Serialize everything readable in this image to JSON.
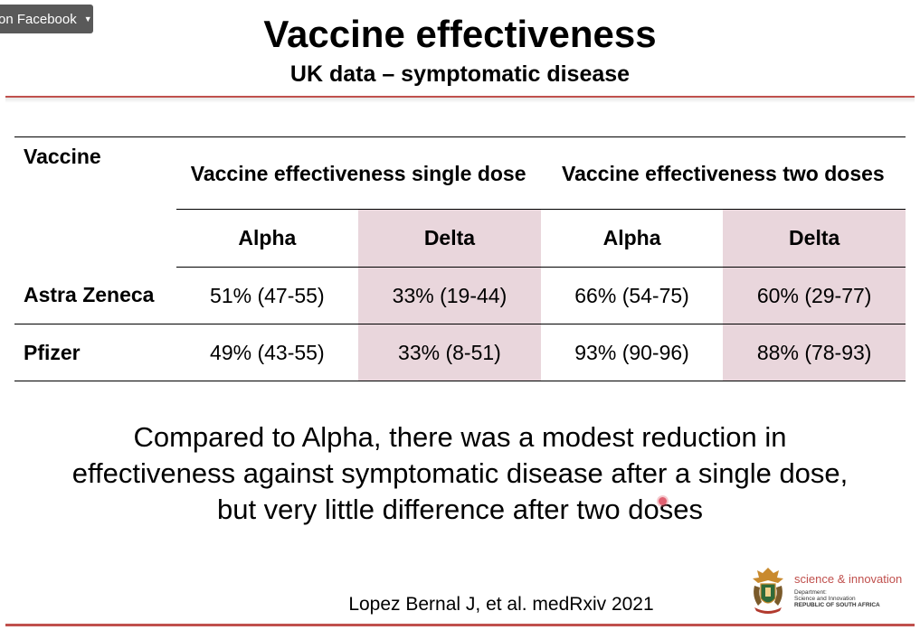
{
  "overlay": {
    "facebook_label": "on Facebook"
  },
  "slide": {
    "title": "Vaccine effectiveness",
    "subtitle": "UK data – symptomatic disease"
  },
  "table": {
    "vaccine_header": "Vaccine",
    "single_dose_header": "Vaccine effectiveness single dose",
    "two_dose_header": "Vaccine effectiveness two doses",
    "variants": [
      "Alpha",
      "Delta",
      "Alpha",
      "Delta"
    ],
    "rows": [
      {
        "vaccine": "Astra Zeneca",
        "single_alpha": "51% (47-55)",
        "single_delta": "33% (19-44)",
        "two_alpha": "66% (54-75)",
        "two_delta": "60% (29-77)"
      },
      {
        "vaccine": "Pfizer",
        "single_alpha": "49% (43-55)",
        "single_delta": "33% (8-51)",
        "two_alpha": "93% (90-96)",
        "two_delta": "88% (78-93)"
      }
    ]
  },
  "conclusion": {
    "line1": "Compared to Alpha, there was a modest reduction in",
    "line2": "effectiveness against symptomatic disease after a single dose,",
    "line3": "but very little difference after two doses"
  },
  "reference": "Lopez Bernal J, et al. medRxiv 2021",
  "logo": {
    "icon": "coat-of-arms-icon",
    "brand": "science & innovation",
    "dept_line1": "Department:",
    "dept_line2": "Science and Innovation",
    "dept_line3": "REPUBLIC OF SOUTH AFRICA"
  },
  "colors": {
    "accent": "#c0504d",
    "delta_shade": "#e9d6dc",
    "overlay_bg": "#595959"
  }
}
